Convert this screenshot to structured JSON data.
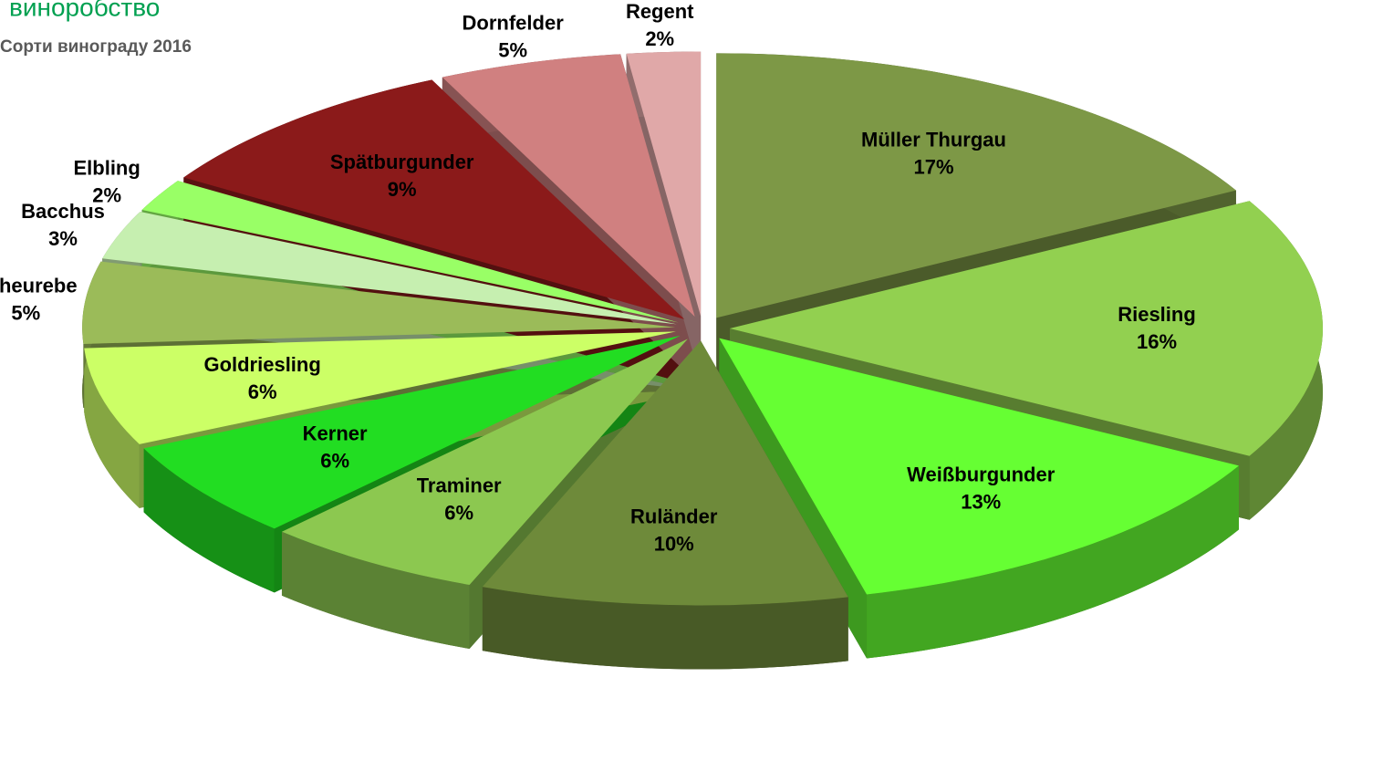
{
  "chart_data": {
    "type": "pie",
    "title": "виноробство",
    "subtitle": "Сорти винограду 2016",
    "categories": [
      "Müller Thurgau",
      "Riesling",
      "Weißburgunder",
      "Ruländer",
      "Traminer",
      "Kerner",
      "Goldriesling",
      "Scheurebe",
      "Bacchus",
      "Elbling",
      "Spätburgunder",
      "Dornfelder",
      "Regent"
    ],
    "values": [
      17,
      16,
      13,
      10,
      6,
      6,
      6,
      5,
      3,
      2,
      9,
      5,
      2
    ],
    "value_labels": [
      "17%",
      "16%",
      "13%",
      "10%",
      "6%",
      "6%",
      "6%",
      "5%",
      "3%",
      "2%",
      "9%",
      "5%",
      "2%"
    ],
    "colors": [
      "#7d9846",
      "#92d050",
      "#66ff33",
      "#6e8a3a",
      "#8cc850",
      "#22dd22",
      "#ccff66",
      "#9bbb59",
      "#c6efb0",
      "#99ff66",
      "#8b1a1a",
      "#d08080",
      "#e0a8a8"
    ]
  }
}
